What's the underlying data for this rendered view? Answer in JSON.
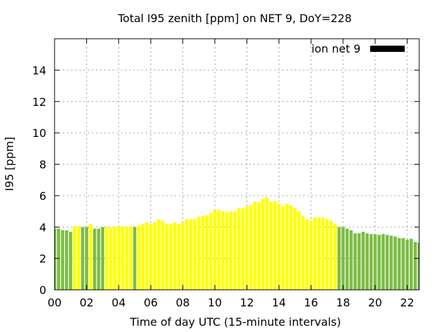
{
  "chart_data": {
    "type": "bar",
    "title": "Total I95 zenith [ppm] on NET 9, DoY=228",
    "xlabel": "Time of day UTC (15-minute intervals)",
    "ylabel": "I95 [ppm]",
    "ylim": [
      0,
      16
    ],
    "xlim": [
      0,
      22.75
    ],
    "yticks": [
      "0",
      "2",
      "4",
      "6",
      "8",
      "10",
      "12",
      "14"
    ],
    "xticks": [
      "00",
      "02",
      "04",
      "06",
      "08",
      "10",
      "12",
      "14",
      "16",
      "18",
      "20",
      "22"
    ],
    "grid": true,
    "legend": {
      "label": "ion net 9",
      "position": "top-right",
      "color": "#000000"
    },
    "colors": {
      "green": "#7dbd45",
      "yellow": "#ffff00"
    },
    "series": [
      {
        "bar_width_hours": 0.2,
        "x": [
          0,
          0.25,
          0.5,
          0.75,
          1,
          1.25,
          1.5,
          1.75,
          2,
          2.25,
          2.5,
          2.75,
          3,
          3.25,
          3.5,
          3.75,
          4,
          4.25,
          4.5,
          4.75,
          5,
          5.25,
          5.5,
          5.75,
          6,
          6.25,
          6.5,
          6.75,
          7,
          7.25,
          7.5,
          7.75,
          8,
          8.25,
          8.5,
          8.75,
          9,
          9.25,
          9.5,
          9.75,
          10,
          10.25,
          10.5,
          10.75,
          11,
          11.25,
          11.5,
          11.75,
          12,
          12.25,
          12.5,
          12.75,
          13,
          13.25,
          13.5,
          13.75,
          14,
          14.25,
          14.5,
          14.75,
          15,
          15.25,
          15.5,
          15.75,
          16,
          16.25,
          16.5,
          16.75,
          17,
          17.25,
          17.5,
          17.75,
          18,
          18.25,
          18.5,
          18.75,
          19,
          19.25,
          19.5,
          19.75,
          20,
          20.25,
          20.5,
          20.75,
          21,
          21.25,
          21.5,
          21.75,
          22,
          22.25,
          22.5,
          22.75
        ],
        "values": [
          3.9,
          3.9,
          3.8,
          3.8,
          3.7,
          4.05,
          4.05,
          4.0,
          4.0,
          4.2,
          3.9,
          3.9,
          4.0,
          4.0,
          3.95,
          4.0,
          4.05,
          4.05,
          4.0,
          4.05,
          4.0,
          4.1,
          4.2,
          4.3,
          4.2,
          4.3,
          4.5,
          4.4,
          4.2,
          4.2,
          4.3,
          4.2,
          4.3,
          4.5,
          4.5,
          4.5,
          4.65,
          4.7,
          4.75,
          4.9,
          5.1,
          5.1,
          5.0,
          4.95,
          5.0,
          5.0,
          5.2,
          5.2,
          5.3,
          5.4,
          5.6,
          5.6,
          5.8,
          5.9,
          5.6,
          5.65,
          5.5,
          5.3,
          5.5,
          5.4,
          5.2,
          5.0,
          4.7,
          4.5,
          4.4,
          4.6,
          4.6,
          4.6,
          4.5,
          4.4,
          4.2,
          4.0,
          4.0,
          3.9,
          3.8,
          3.6,
          3.6,
          3.7,
          3.6,
          3.55,
          3.55,
          3.5,
          3.55,
          3.5,
          3.45,
          3.4,
          3.3,
          3.3,
          3.2,
          3.25,
          3.05,
          3.0
        ],
        "colors": [
          "g",
          "g",
          "g",
          "g",
          "g",
          "y",
          "y",
          "g",
          "g",
          "y",
          "g",
          "g",
          "g",
          "y",
          "y",
          "y",
          "y",
          "y",
          "y",
          "y",
          "g",
          "y",
          "y",
          "y",
          "y",
          "y",
          "y",
          "y",
          "y",
          "y",
          "y",
          "y",
          "y",
          "y",
          "y",
          "y",
          "y",
          "y",
          "y",
          "y",
          "y",
          "y",
          "y",
          "y",
          "y",
          "y",
          "y",
          "y",
          "y",
          "y",
          "y",
          "y",
          "y",
          "y",
          "y",
          "y",
          "y",
          "y",
          "y",
          "y",
          "y",
          "y",
          "y",
          "y",
          "y",
          "y",
          "y",
          "y",
          "y",
          "y",
          "y",
          "g",
          "g",
          "g",
          "g",
          "g",
          "g",
          "g",
          "g",
          "g",
          "g",
          "g",
          "g",
          "g",
          "g",
          "g",
          "g",
          "g",
          "g",
          "g",
          "g",
          "g"
        ]
      }
    ]
  }
}
